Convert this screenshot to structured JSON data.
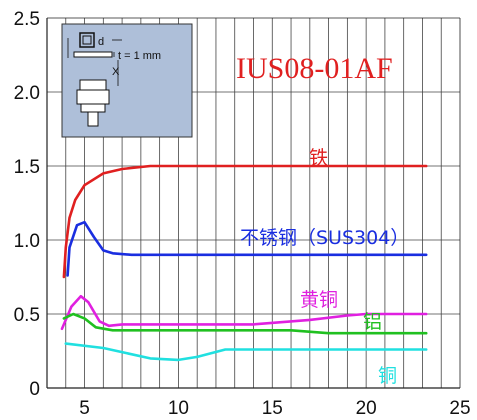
{
  "chart_data": {
    "type": "line",
    "title": "IUS08-01AF",
    "xlabel": "",
    "ylabel": "",
    "xlim": [
      3,
      25
    ],
    "ylim": [
      0,
      2.5
    ],
    "x_ticks": [
      "5",
      "10",
      "15",
      "20",
      "25"
    ],
    "y_ticks": [
      "0",
      "0.5",
      "1.0",
      "1.5",
      "2.0",
      "2.5"
    ],
    "grid": true,
    "series": [
      {
        "name": "铁",
        "color": "#e02020",
        "points": [
          [
            3.9,
            0.75
          ],
          [
            4.0,
            0.95
          ],
          [
            4.2,
            1.15
          ],
          [
            4.5,
            1.27
          ],
          [
            5.0,
            1.37
          ],
          [
            6.0,
            1.45
          ],
          [
            7.0,
            1.48
          ],
          [
            8.5,
            1.5
          ],
          [
            10,
            1.5
          ],
          [
            23.2,
            1.5
          ]
        ]
      },
      {
        "name": "不锈钢（SUS304）",
        "color": "#1a2ee0",
        "points": [
          [
            4.1,
            0.76
          ],
          [
            4.2,
            0.95
          ],
          [
            4.6,
            1.1
          ],
          [
            5.0,
            1.12
          ],
          [
            5.5,
            1.02
          ],
          [
            6.0,
            0.93
          ],
          [
            6.5,
            0.91
          ],
          [
            7.5,
            0.9
          ],
          [
            10,
            0.9
          ],
          [
            23.2,
            0.9
          ]
        ]
      },
      {
        "name": "黄铜",
        "color": "#e020e0",
        "points": [
          [
            3.8,
            0.4
          ],
          [
            4.3,
            0.55
          ],
          [
            4.8,
            0.62
          ],
          [
            5.2,
            0.58
          ],
          [
            5.8,
            0.45
          ],
          [
            6.3,
            0.42
          ],
          [
            7,
            0.43
          ],
          [
            10,
            0.43
          ],
          [
            14,
            0.43
          ],
          [
            17,
            0.46
          ],
          [
            19,
            0.49
          ],
          [
            20,
            0.5
          ],
          [
            23.2,
            0.5
          ]
        ]
      },
      {
        "name": "铝",
        "color": "#20c020",
        "points": [
          [
            3.9,
            0.47
          ],
          [
            4.4,
            0.5
          ],
          [
            5.0,
            0.47
          ],
          [
            5.6,
            0.41
          ],
          [
            6.5,
            0.39
          ],
          [
            10,
            0.39
          ],
          [
            14,
            0.39
          ],
          [
            16,
            0.39
          ],
          [
            18,
            0.37
          ],
          [
            23.2,
            0.37
          ]
        ]
      },
      {
        "name": "铜",
        "color": "#20e0e0",
        "points": [
          [
            4.0,
            0.3
          ],
          [
            6.0,
            0.27
          ],
          [
            8.5,
            0.2
          ],
          [
            10,
            0.19
          ],
          [
            11,
            0.21
          ],
          [
            12.5,
            0.26
          ],
          [
            14,
            0.26
          ],
          [
            23.2,
            0.26
          ]
        ]
      }
    ],
    "inset": {
      "d_label": "d",
      "t_label": "t = 1 mm",
      "x_label": "X"
    }
  }
}
